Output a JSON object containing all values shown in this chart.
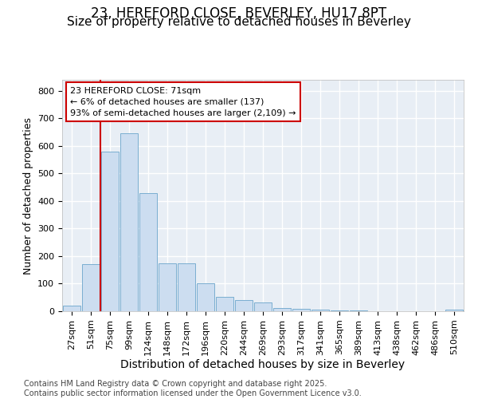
{
  "title_line1": "23, HEREFORD CLOSE, BEVERLEY, HU17 8PT",
  "title_line2": "Size of property relative to detached houses in Beverley",
  "xlabel": "Distribution of detached houses by size in Beverley",
  "ylabel": "Number of detached properties",
  "categories": [
    "27sqm",
    "51sqm",
    "75sqm",
    "99sqm",
    "124sqm",
    "148sqm",
    "172sqm",
    "196sqm",
    "220sqm",
    "244sqm",
    "269sqm",
    "293sqm",
    "317sqm",
    "341sqm",
    "365sqm",
    "389sqm",
    "413sqm",
    "438sqm",
    "462sqm",
    "486sqm",
    "510sqm"
  ],
  "bar_heights": [
    20,
    170,
    580,
    645,
    430,
    175,
    175,
    100,
    52,
    40,
    33,
    13,
    8,
    5,
    3,
    2,
    1,
    1,
    0,
    0,
    5
  ],
  "bar_color": "#ccddf0",
  "bar_edge_color": "#7aaed0",
  "vline_x": 1.5,
  "vline_color": "#cc0000",
  "annotation_text": "23 HEREFORD CLOSE: 71sqm\n← 6% of detached houses are smaller (137)\n93% of semi-detached houses are larger (2,109) →",
  "annotation_box_facecolor": "#ffffff",
  "annotation_box_edgecolor": "#cc0000",
  "plot_bg_color": "#e8eef5",
  "grid_color": "#ffffff",
  "ylim": [
    0,
    840
  ],
  "yticks": [
    0,
    100,
    200,
    300,
    400,
    500,
    600,
    700,
    800
  ],
  "footer_text": "Contains HM Land Registry data © Crown copyright and database right 2025.\nContains public sector information licensed under the Open Government Licence v3.0.",
  "title_fontsize": 12,
  "subtitle_fontsize": 11,
  "ylabel_fontsize": 9,
  "xlabel_fontsize": 10,
  "tick_fontsize": 8,
  "annotation_fontsize": 8,
  "footer_fontsize": 7
}
